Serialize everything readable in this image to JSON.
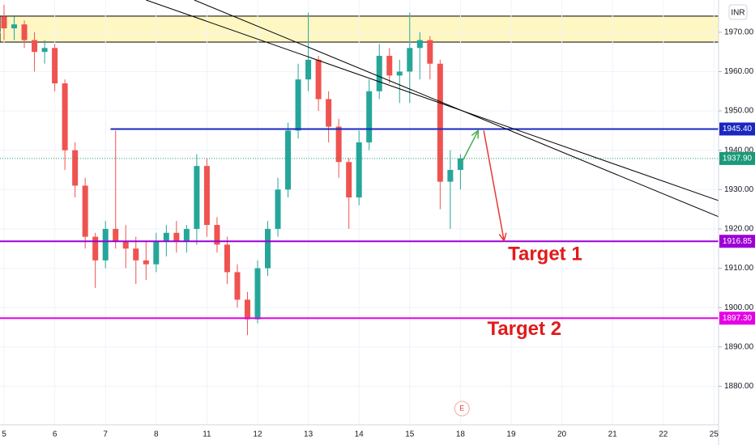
{
  "chart_data": {
    "type": "candlestick",
    "currency": "INR",
    "x": [
      0,
      0.2,
      0.4,
      0.6,
      0.8,
      1,
      1.2,
      1.4,
      1.6,
      1.8,
      2,
      2.2,
      2.4,
      2.6,
      2.8,
      3,
      3.2,
      3.4,
      3.6,
      3.8,
      4,
      4.2,
      4.4,
      4.6,
      4.8,
      5,
      5.2,
      5.4,
      5.6,
      5.8,
      6,
      6.2,
      6.4,
      6.6,
      6.8,
      7,
      7.2,
      7.4,
      7.6,
      7.8,
      8,
      8.2,
      8.4,
      8.6,
      8.8,
      9
    ],
    "open": [
      1974,
      1971,
      1972,
      1968,
      1965,
      1966,
      1957,
      1940,
      1931,
      1918,
      1912,
      1920,
      1917,
      1915,
      1912,
      1911,
      1917,
      1919,
      1917,
      1920,
      1936,
      1921,
      1916,
      1909,
      1902,
      1897,
      1910,
      1920,
      1930,
      1945,
      1958,
      1963,
      1953,
      1946,
      1937,
      1928,
      1942,
      1955,
      1964,
      1959,
      1960,
      1966,
      1968,
      1962,
      1932,
      1935
    ],
    "high": [
      1977,
      1974,
      1973,
      1970,
      1968,
      1967,
      1958,
      1942,
      1933,
      1919,
      1922,
      1945,
      1921,
      1918,
      1917,
      1919,
      1921,
      1922,
      1921,
      1939,
      1938,
      1923,
      1918,
      1911,
      1904,
      1912,
      1922,
      1933,
      1947,
      1962,
      1975,
      1964,
      1955,
      1948,
      1938,
      1945,
      1958,
      1967,
      1966,
      1963,
      1975,
      1970,
      1969,
      1963,
      1940,
      1939
    ],
    "low": [
      1968,
      1968,
      1966,
      1960,
      1962,
      1955,
      1935,
      1928,
      1915,
      1905,
      1910,
      1915,
      1910,
      1906,
      1907,
      1909,
      1913,
      1914,
      1914,
      1916,
      1918,
      1914,
      1906,
      1900,
      1893,
      1896,
      1908,
      1918,
      1928,
      1943,
      1955,
      1950,
      1942,
      1933,
      1920,
      1926,
      1940,
      1953,
      1957,
      1952,
      1952,
      1958,
      1958,
      1925,
      1920,
      1930
    ],
    "close": [
      1971,
      1972,
      1968,
      1965,
      1966,
      1957,
      1940,
      1931,
      1918,
      1912,
      1920,
      1917,
      1915,
      1912,
      1911,
      1917,
      1919,
      1917,
      1920,
      1936,
      1921,
      1916,
      1909,
      1902,
      1897,
      1910,
      1920,
      1930,
      1945,
      1958,
      1963,
      1953,
      1946,
      1937,
      1928,
      1942,
      1955,
      1964,
      1959,
      1960,
      1966,
      1968,
      1962,
      1932,
      1935,
      1937.9
    ],
    "up_color": "#26a69a",
    "down_color": "#ef5350",
    "xlim": [
      -0.08,
      14.09
    ],
    "ylim": [
      1870.2,
      1978.2
    ],
    "xticks": [
      {
        "value": 0,
        "label": "5"
      },
      {
        "value": 1,
        "label": "6"
      },
      {
        "value": 2,
        "label": "7"
      },
      {
        "value": 3,
        "label": "8"
      },
      {
        "value": 4,
        "label": "11"
      },
      {
        "value": 5,
        "label": "12"
      },
      {
        "value": 6,
        "label": "13"
      },
      {
        "value": 7,
        "label": "14"
      },
      {
        "value": 8,
        "label": "15"
      },
      {
        "value": 9,
        "label": "18"
      },
      {
        "value": 10,
        "label": "19"
      },
      {
        "value": 11,
        "label": "20"
      },
      {
        "value": 12,
        "label": "21"
      },
      {
        "value": 13,
        "label": "22"
      },
      {
        "value": 14,
        "label": "25"
      }
    ],
    "yticks": [
      {
        "value": 1970,
        "label": "1970.00"
      },
      {
        "value": 1960,
        "label": "1960.00"
      },
      {
        "value": 1950,
        "label": "1950.00"
      },
      {
        "value": 1940,
        "label": "1940.00"
      },
      {
        "value": 1930,
        "label": "1930.00"
      },
      {
        "value": 1920,
        "label": "1920.00"
      },
      {
        "value": 1910,
        "label": "1910.00"
      },
      {
        "value": 1900,
        "label": "1900.00"
      },
      {
        "value": 1890,
        "label": "1890.00"
      },
      {
        "value": 1880,
        "label": "1880.00"
      }
    ],
    "grid": true,
    "zone": {
      "ylim": [
        1967.5,
        1974.1
      ],
      "color": "#fff7c2"
    },
    "trendlines": [
      {
        "x": [
          2.8,
          14.09
        ],
        "y": [
          1978.2,
          1927.2
        ],
        "color": "#000000"
      },
      {
        "x": [
          3.75,
          14.09
        ],
        "y": [
          1978.2,
          1923.1
        ],
        "color": "#000000"
      }
    ],
    "price_lines": [
      {
        "value": 1945.4,
        "label": "1945.40",
        "color": "#1a28c0",
        "start": 2.1,
        "style": "solid"
      },
      {
        "value": 1937.9,
        "label": "1937.90",
        "color": "#1a9a78",
        "start": -0.08,
        "style": "dotted"
      },
      {
        "value": 1916.85,
        "label": "1916.85",
        "color": "#9c00d6",
        "start": -0.08,
        "style": "solid"
      },
      {
        "value": 1897.3,
        "label": "1897.30",
        "color": "#e600e6",
        "start": -0.08,
        "style": "solid"
      }
    ],
    "arrows": [
      {
        "x": [
          9.03,
          9.35
        ],
        "y": [
          1937,
          1945
        ],
        "color": "#4caf50"
      },
      {
        "x": [
          9.46,
          9.86
        ],
        "y": [
          1945,
          1917
        ],
        "color": "#e53935"
      }
    ],
    "texts": [
      {
        "text": "Target 1",
        "x": 10.67,
        "y": 1913.4,
        "color": "#e01b1b"
      },
      {
        "text": "Target 2",
        "x": 10.26,
        "y": 1894.3,
        "color": "#e01b1b"
      }
    ],
    "event": {
      "text": "E",
      "x": 9.03
    }
  }
}
